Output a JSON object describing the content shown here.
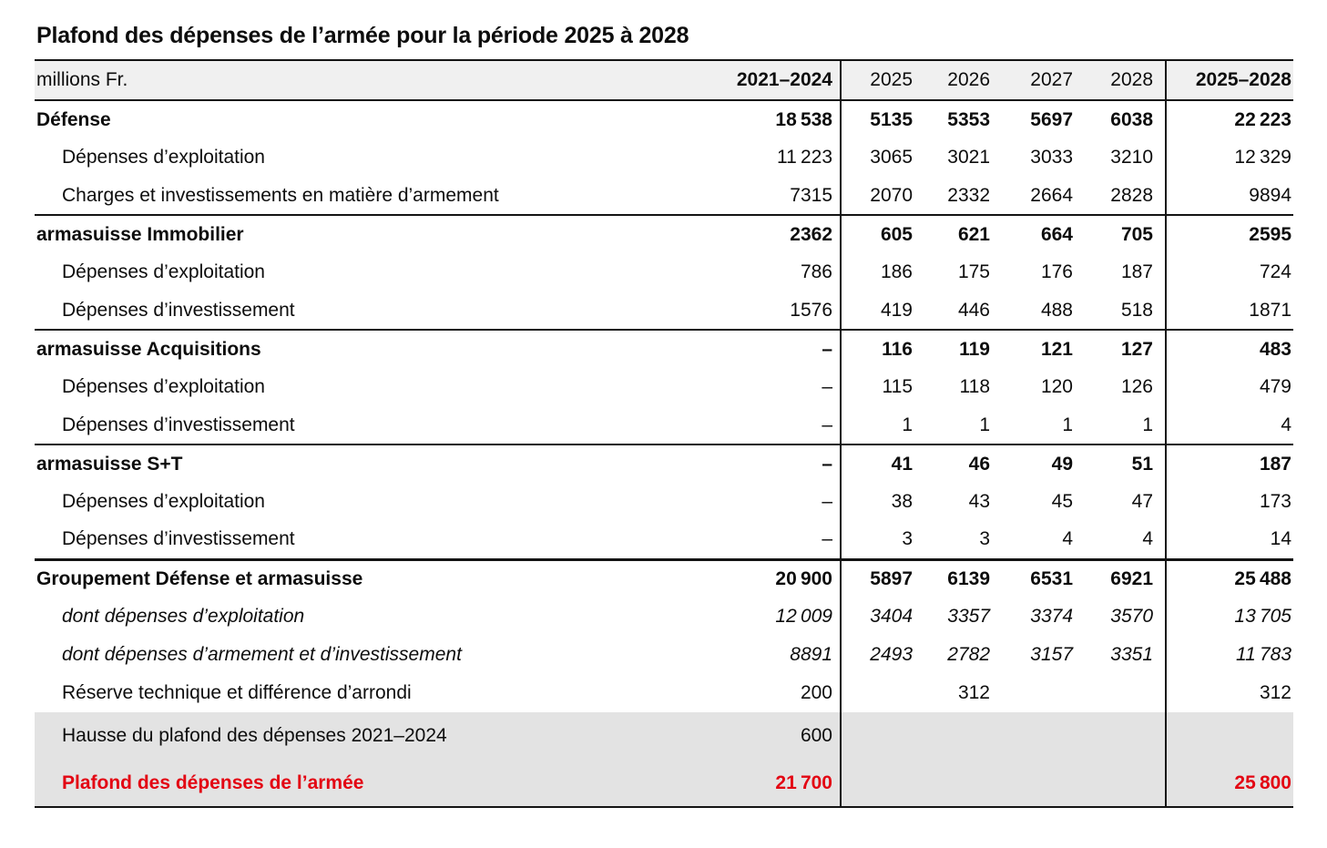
{
  "title": "Plafond des dépenses de l’armée pour la période 2025 à 2028",
  "colors": {
    "accent_red": "#e30613",
    "header_bg": "#f0f0f0",
    "highlight_bg": "#e3e3e3",
    "border": "#141414",
    "text": "#0d0d0d"
  },
  "table": {
    "unit_label": "millions Fr.",
    "columns": [
      "2021–2024",
      "2025",
      "2026",
      "2027",
      "2028",
      "2025–2028"
    ],
    "rows": [
      {
        "label": "Défense",
        "level": "section",
        "emphasis": null,
        "separator": null,
        "background": null,
        "values": [
          "18 538",
          "5135",
          "5353",
          "5697",
          "6038",
          "22 223"
        ]
      },
      {
        "label": "Dépenses d’exploitation",
        "level": "sub",
        "emphasis": null,
        "separator": null,
        "background": null,
        "values": [
          "11 223",
          "3065",
          "3021",
          "3033",
          "3210",
          "12 329"
        ]
      },
      {
        "label": "Charges et investissements en matière d’armement",
        "level": "sub",
        "emphasis": null,
        "separator": null,
        "background": null,
        "values": [
          "7315",
          "2070",
          "2332",
          "2664",
          "2828",
          "9894"
        ]
      },
      {
        "label": "armasuisse Immobilier",
        "level": "section",
        "emphasis": null,
        "separator": "normal",
        "background": null,
        "values": [
          "2362",
          "605",
          "621",
          "664",
          "705",
          "2595"
        ]
      },
      {
        "label": "Dépenses d’exploitation",
        "level": "sub",
        "emphasis": null,
        "separator": null,
        "background": null,
        "values": [
          "786",
          "186",
          "175",
          "176",
          "187",
          "724"
        ]
      },
      {
        "label": "Dépenses d’investissement",
        "level": "sub",
        "emphasis": null,
        "separator": null,
        "background": null,
        "values": [
          "1576",
          "419",
          "446",
          "488",
          "518",
          "1871"
        ]
      },
      {
        "label": "armasuisse Acquisitions",
        "level": "section",
        "emphasis": null,
        "separator": "normal",
        "background": null,
        "values": [
          "–",
          "116",
          "119",
          "121",
          "127",
          "483"
        ]
      },
      {
        "label": "Dépenses d’exploitation",
        "level": "sub",
        "emphasis": null,
        "separator": null,
        "background": null,
        "values": [
          "–",
          "115",
          "118",
          "120",
          "126",
          "479"
        ]
      },
      {
        "label": "Dépenses d’investissement",
        "level": "sub",
        "emphasis": null,
        "separator": null,
        "background": null,
        "values": [
          "–",
          "1",
          "1",
          "1",
          "1",
          "4"
        ]
      },
      {
        "label": "armasuisse S+T",
        "level": "section",
        "emphasis": null,
        "separator": "normal",
        "background": null,
        "values": [
          "–",
          "41",
          "46",
          "49",
          "51",
          "187"
        ]
      },
      {
        "label": "Dépenses d’exploitation",
        "level": "sub",
        "emphasis": null,
        "separator": null,
        "background": null,
        "values": [
          "–",
          "38",
          "43",
          "45",
          "47",
          "173"
        ]
      },
      {
        "label": "Dépenses d’investissement",
        "level": "sub",
        "emphasis": null,
        "separator": null,
        "background": null,
        "values": [
          "–",
          "3",
          "3",
          "4",
          "4",
          "14"
        ]
      },
      {
        "label": "Groupement Défense et armasuisse",
        "level": "section",
        "emphasis": null,
        "separator": "thick",
        "background": null,
        "values": [
          "20 900",
          "5897",
          "6139",
          "6531",
          "6921",
          "25 488"
        ]
      },
      {
        "label": "dont dépenses d’exploitation",
        "level": "sub",
        "emphasis": "italic",
        "separator": null,
        "background": null,
        "values": [
          "12 009",
          "3404",
          "3357",
          "3374",
          "3570",
          "13 705"
        ]
      },
      {
        "label": "dont dépenses d’armement et d’investissement",
        "level": "sub",
        "emphasis": "italic",
        "separator": null,
        "background": null,
        "values": [
          "8891",
          "2493",
          "2782",
          "3157",
          "3351",
          "11 783"
        ]
      },
      {
        "label": "Réserve technique et différence d’arrondi",
        "level": "sub",
        "emphasis": null,
        "separator": null,
        "background": null,
        "values": [
          "200",
          "",
          "312",
          "",
          "",
          "312"
        ]
      },
      {
        "label": "Hausse du plafond des dépenses 2021–2024",
        "level": "sub",
        "emphasis": null,
        "separator": null,
        "background": "gray",
        "values": [
          "600",
          "",
          "",
          "",
          "",
          ""
        ]
      },
      {
        "label": "Plafond des dépenses de l’armée",
        "level": "sub",
        "emphasis": "red",
        "separator": null,
        "background": "gray",
        "values": [
          "21 700",
          "",
          "",
          "",
          "",
          "25 800"
        ]
      }
    ]
  }
}
